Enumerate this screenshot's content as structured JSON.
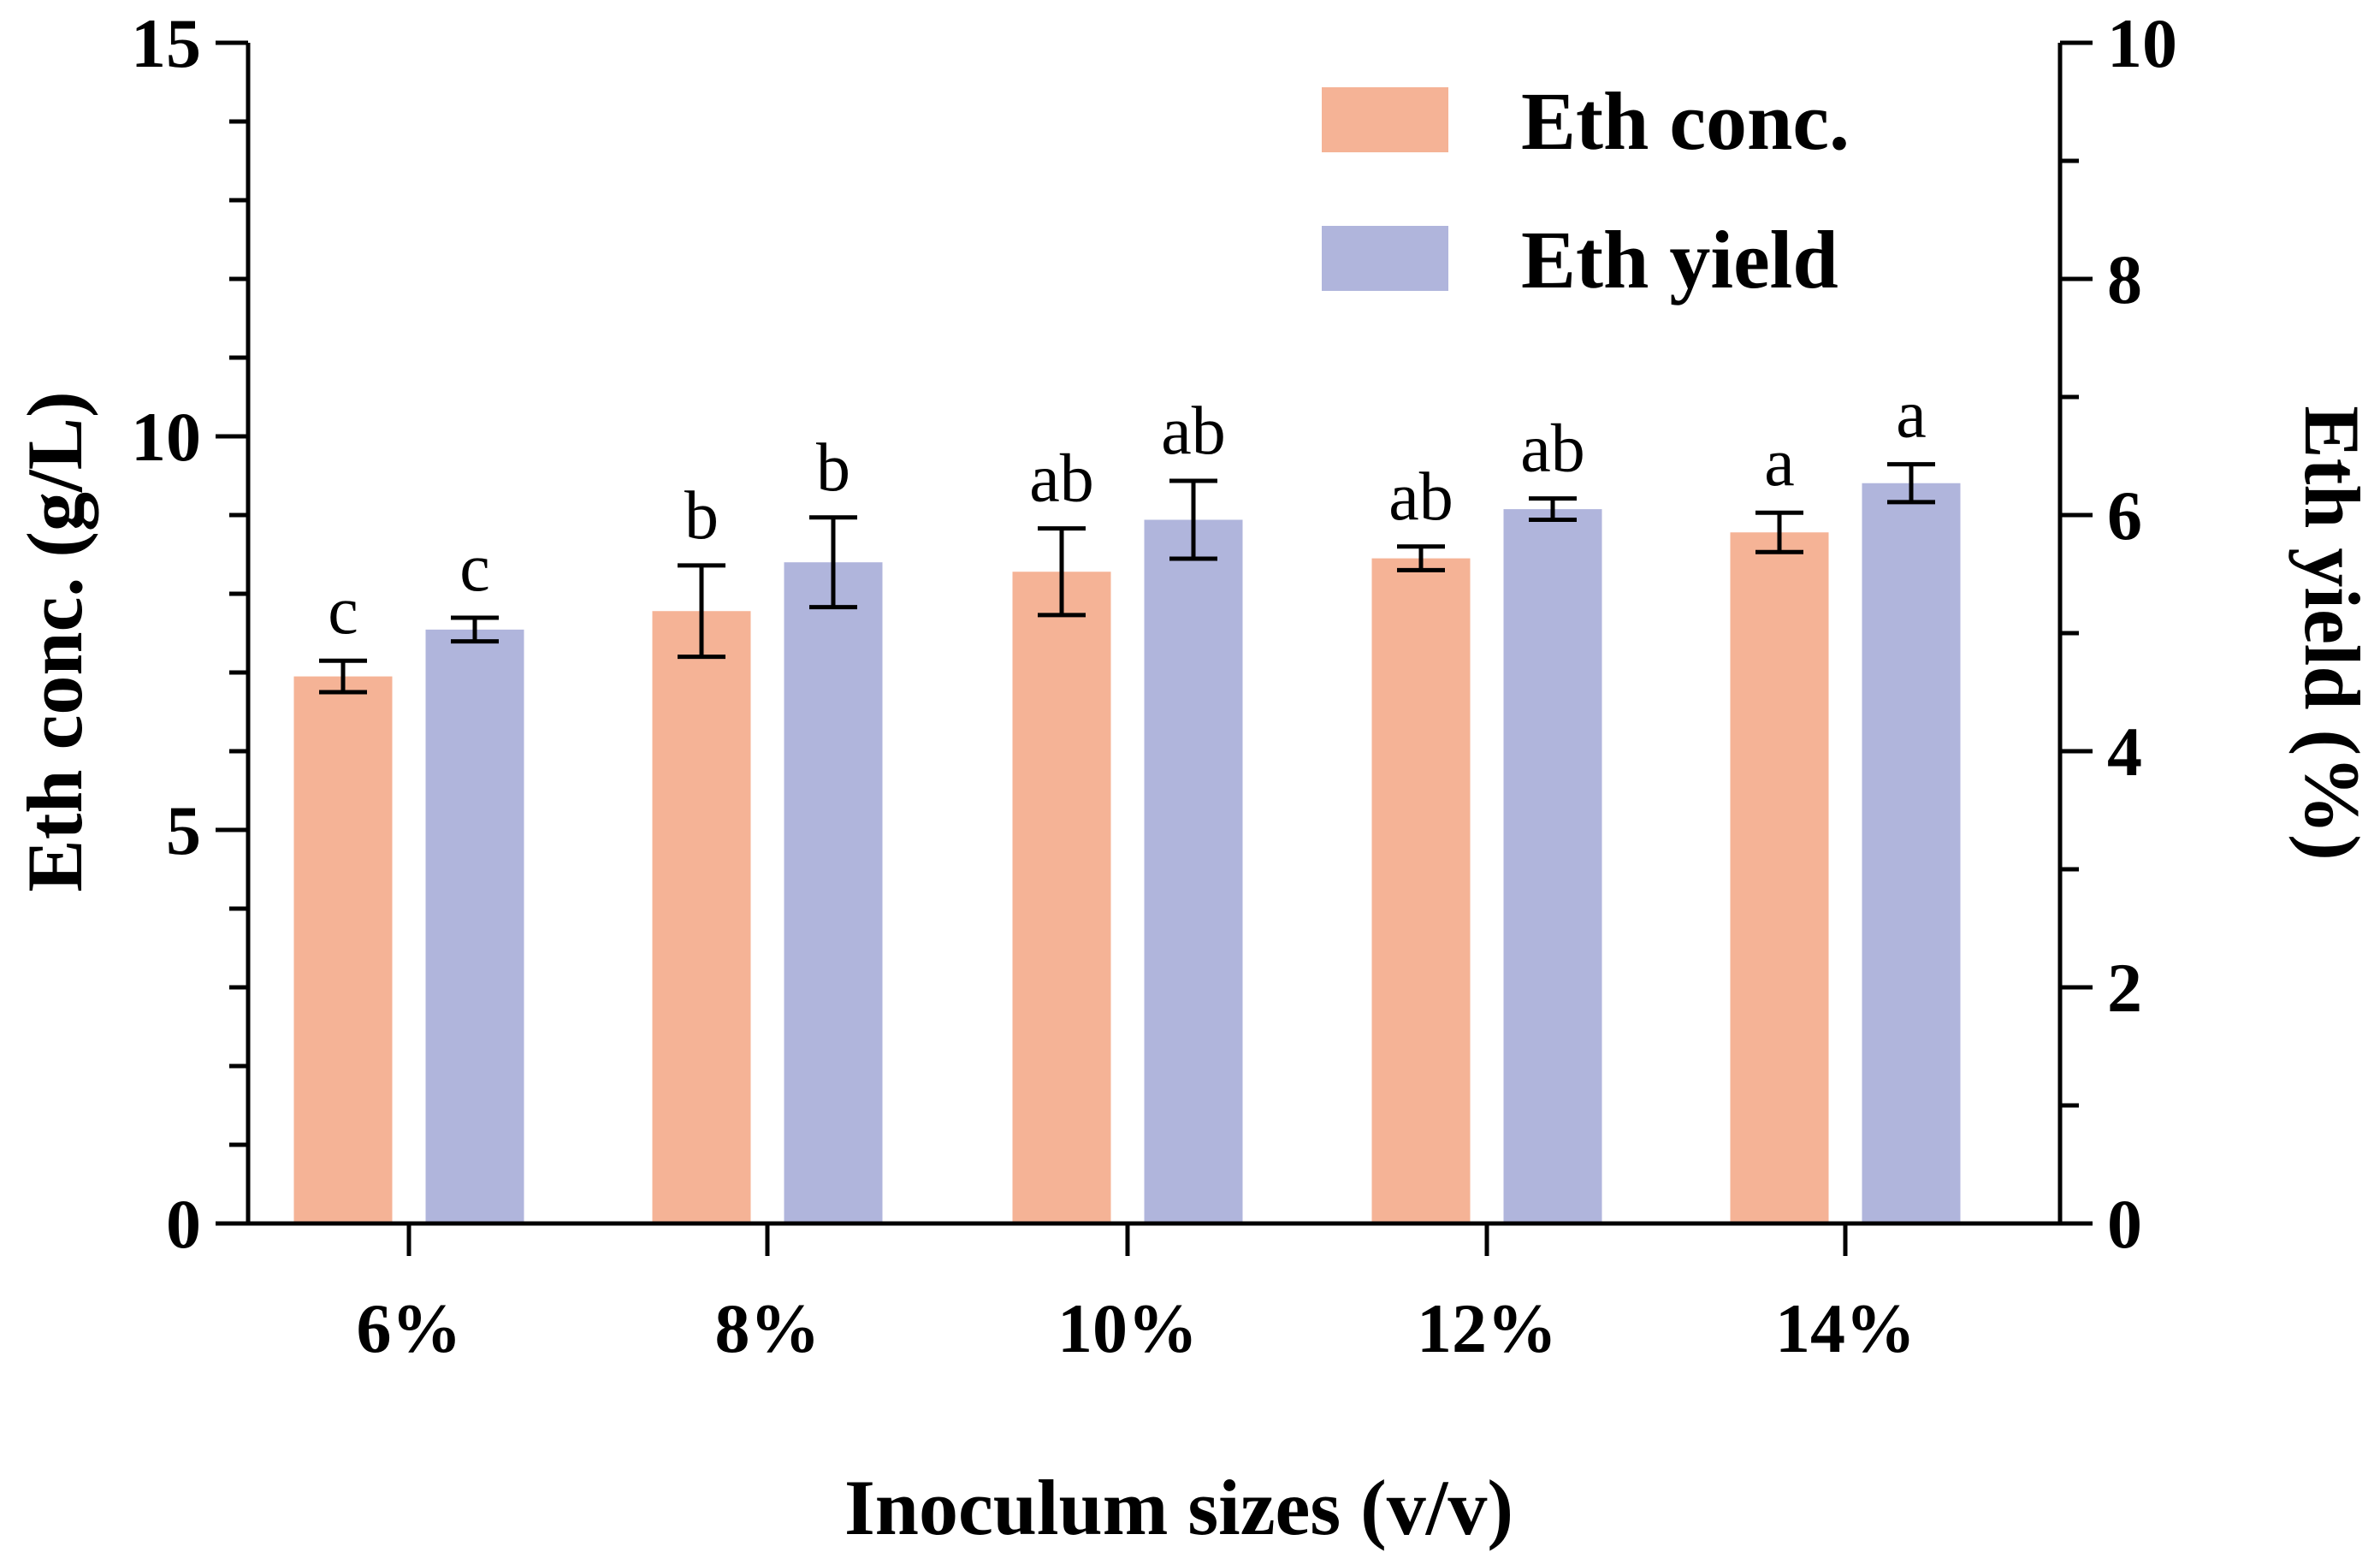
{
  "chart_data": {
    "type": "bar",
    "xlabel": "Inoculum sizes (v/v)",
    "ylabel_left": "Eth conc. (g/L)",
    "ylabel_right": "Eth yield (%)",
    "categories": [
      "6%",
      "8%",
      "10%",
      "12%",
      "14%"
    ],
    "left_axis": {
      "ylim": [
        0,
        15
      ],
      "ticks": [
        "0",
        "5",
        "10",
        "15"
      ]
    },
    "right_axis": {
      "ylim": [
        0,
        10
      ],
      "ticks": [
        "0",
        "2",
        "4",
        "6",
        "8",
        "10"
      ]
    },
    "grid": false,
    "legend_position": "top-right",
    "series": [
      {
        "name": "Eth conc.",
        "axis": "left",
        "color": "#F5B396",
        "values": [
          6.95,
          7.78,
          8.28,
          8.45,
          8.78
        ],
        "errors": [
          0.2,
          0.58,
          0.55,
          0.15,
          0.25
        ],
        "labels": [
          "c",
          "b",
          "ab",
          "ab",
          "a"
        ]
      },
      {
        "name": "Eth yield",
        "axis": "right",
        "color": "#B0B5DC",
        "values": [
          5.03,
          5.6,
          5.96,
          6.05,
          6.27
        ],
        "errors": [
          0.1,
          0.38,
          0.33,
          0.09,
          0.16
        ],
        "labels": [
          "c",
          "b",
          "ab",
          "ab",
          "a"
        ]
      }
    ]
  }
}
